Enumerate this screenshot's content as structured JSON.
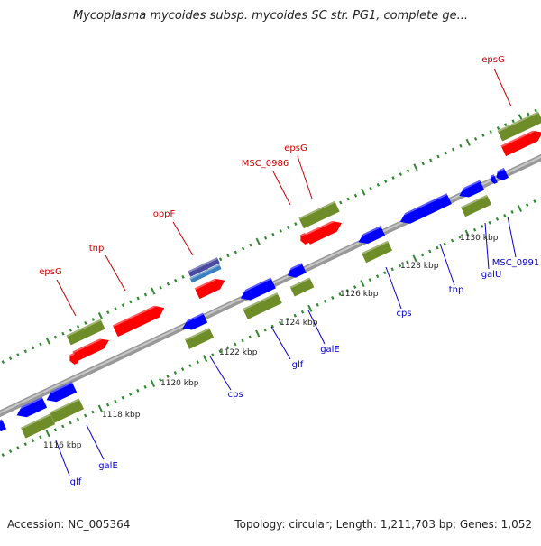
{
  "title": "Mycoplasma mycoides subsp. mycoides SC str. PG1, complete ge...",
  "footer": {
    "accession": "Accession: NC_005364",
    "summary": "Topology: circular; Length: 1,211,703 bp; Genes: 1,052"
  },
  "colors": {
    "backbone": "#8c8c8c",
    "ticks": "#2f8a2f",
    "forward_cds": "#ff0000",
    "reverse_cds": "#0000ff",
    "gene": "#6e8c28",
    "other_feature": "#4a4aa0",
    "label_forward": "#cc0000",
    "label_reverse": "#0000cc"
  },
  "scale_labels": [
    "1116 kbp",
    "1118 kbp",
    "1120 kbp",
    "1122 kbp",
    "1124 kbp",
    "1126 kbp",
    "1128 kbp",
    "1130 kbp"
  ],
  "upper_labels": [
    "epsG",
    "tnp",
    "oppF",
    "MSC_0986",
    "epsG",
    "epsG"
  ],
  "lower_labels": [
    "glf",
    "galE",
    "cps",
    "glf",
    "galE",
    "cps",
    "tnp",
    "galU",
    "MSC_0991"
  ]
}
